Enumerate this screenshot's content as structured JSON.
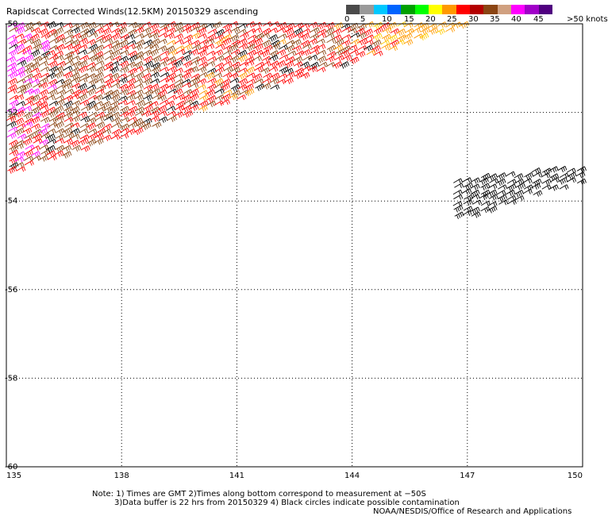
{
  "title": "Rapidscat Corrected Winds(12.5KM) 20150329 ascending",
  "colorbar": {
    "colors": [
      "#4a4a4a",
      "#9a9a9a",
      "#00c8ff",
      "#0064ff",
      "#00a000",
      "#00ff00",
      "#ffff00",
      "#ff9900",
      "#ff0000",
      "#b40000",
      "#8b4513",
      "#d0a080",
      "#ff00ff",
      "#a000c8",
      "#500080"
    ],
    "labels": [
      "0",
      "5",
      "10",
      "15",
      "20",
      "25",
      "30",
      "35",
      "40",
      "45",
      ">50 knots"
    ]
  },
  "map": {
    "lon_range": [
      135,
      150
    ],
    "lat_range": [
      -60,
      -50
    ],
    "x_ticks": [
      "135",
      "138",
      "141",
      "144",
      "147",
      "150"
    ],
    "y_ticks": [
      "-50",
      "-52",
      "-54",
      "-56",
      "-58",
      "-60"
    ],
    "swath_1": {
      "description_colors": [
        "#8b4513",
        "#ff0000",
        "#ff9900",
        "#ffcc00",
        "#000000",
        "#ff00ff"
      ]
    },
    "swath_2": {
      "color": "#000000"
    }
  },
  "notes": {
    "line1": "Note: 1) Times are GMT 2)Times along bottom correspond to measurement at −50S",
    "line2": "3)Data buffer is 22 hrs from 20150329 4) Black circles indicate possible contamination",
    "line3": "NOAA/NESDIS/Office of Research and Applications"
  }
}
